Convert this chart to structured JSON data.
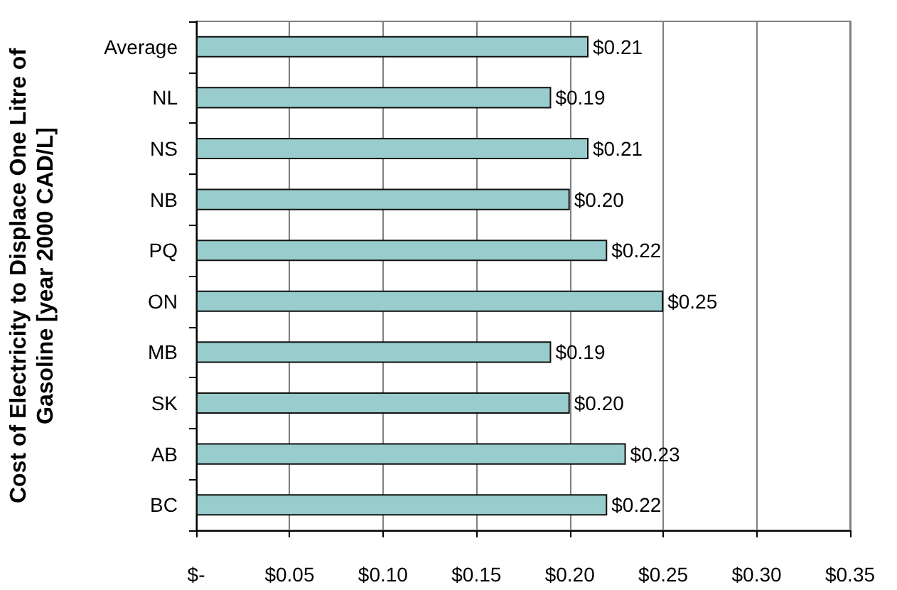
{
  "chart_data": {
    "type": "bar",
    "orientation": "horizontal",
    "categories": [
      "Average",
      "NL",
      "NS",
      "NB",
      "PQ",
      "ON",
      "MB",
      "SK",
      "AB",
      "BC"
    ],
    "values": [
      0.21,
      0.19,
      0.21,
      0.2,
      0.22,
      0.25,
      0.19,
      0.2,
      0.23,
      0.22
    ],
    "value_labels": [
      "$0.21",
      "$0.19",
      "$0.21",
      "$0.20",
      "$0.22",
      "$0.25",
      "$0.19",
      "$0.20",
      "$0.23",
      "$0.22"
    ],
    "color": "#99cccc",
    "ylabel": "Cost of Electricity to Displace One Litre of Gasoline [year 2000 CAD/L]",
    "xlim": [
      0,
      0.35
    ],
    "xticks": [
      {
        "value": 0,
        "label": "$-"
      },
      {
        "value": 0.05,
        "label": "$0.05"
      },
      {
        "value": 0.1,
        "label": "$0.10"
      },
      {
        "value": 0.15,
        "label": "$0.15"
      },
      {
        "value": 0.2,
        "label": "$0.20"
      },
      {
        "value": 0.25,
        "label": "$0.25"
      },
      {
        "value": 0.3,
        "label": "$0.30"
      },
      {
        "value": 0.35,
        "label": "$0.35"
      }
    ],
    "grid": "x"
  }
}
